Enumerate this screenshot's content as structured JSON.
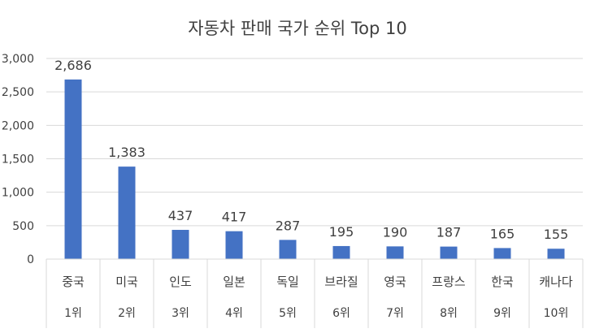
{
  "chart_data": {
    "type": "bar",
    "title": "자동차 판매 국가 순위 Top 10",
    "categories": [
      "중국",
      "미국",
      "인도",
      "일본",
      "독일",
      "브라질",
      "영국",
      "프랑스",
      "한국",
      "캐나다"
    ],
    "ranks": [
      "1위",
      "2위",
      "3위",
      "4위",
      "5위",
      "6위",
      "7위",
      "8위",
      "9위",
      "10위"
    ],
    "values": [
      2686,
      1383,
      437,
      417,
      287,
      195,
      190,
      187,
      165,
      155
    ],
    "value_labels": [
      "2,686",
      "1,383",
      "437",
      "417",
      "287",
      "195",
      "190",
      "187",
      "165",
      "155"
    ],
    "yticks": [
      0,
      500,
      1000,
      1500,
      2000,
      2500,
      3000
    ],
    "ytick_labels": [
      "0",
      "500",
      "1,000",
      "1,500",
      "2,000",
      "2,500",
      "3,000"
    ],
    "ylim": [
      0,
      3000
    ],
    "grid": true,
    "bar_color": "#4472c4",
    "grid_color": "#d9d9d9",
    "text_color": "#404040"
  }
}
